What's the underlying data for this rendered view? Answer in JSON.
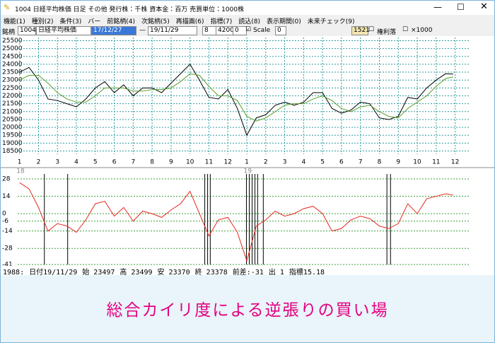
{
  "window": {
    "title": "1004 日経平均株価 日足 その他 発行株：千株 資本金：百万 売買単位：1000株",
    "menu": [
      "機能(1)",
      "種別(2)",
      "条件(3)",
      "バー",
      "前銘柄(4)",
      "次銘柄(5)",
      "再描画(6)",
      "指標(7)",
      "読込(8)",
      "表示期間(0)",
      "未来チェック(9)"
    ],
    "toolbar": {
      "code_label": "銘柄",
      "code": "1004",
      "name": "日経平均株価",
      "start": "17/12/27",
      "dash": "—",
      "end": "19/11/29",
      "n1": "8",
      "n2": "4200",
      "n3": "0",
      "scale": "Scale",
      "n4": "0",
      "n5": "1521",
      "rights": "権利落",
      "unit": "×1000"
    },
    "status": [
      "1988:",
      "日付19/11/29",
      "始 23497",
      "高 23499",
      "安 23370",
      "終 23378",
      "前差:-31",
      "出 1",
      "指標15.18"
    ]
  },
  "caption": "総合カイリ度による逆張りの買い場",
  "chart_data": [
    {
      "type": "line",
      "x": [
        0,
        0.5,
        1,
        1.5,
        2,
        2.5,
        3,
        3.5,
        4,
        4.5,
        5,
        5.5,
        6,
        6.5,
        7,
        7.5,
        8,
        8.5,
        9,
        9.5,
        10,
        10.5,
        11,
        11.5,
        12,
        12.5,
        13,
        13.5,
        14,
        14.5,
        15,
        15.5,
        16,
        16.5,
        17,
        17.5,
        18,
        18.5,
        19,
        19.5,
        20,
        20.5,
        21,
        21.5,
        22,
        22.5,
        22.9
      ],
      "series": [
        {
          "color": "#000000",
          "values": [
            23500,
            23800,
            23000,
            21800,
            21700,
            21500,
            21300,
            21800,
            22500,
            22900,
            22200,
            22700,
            22000,
            22500,
            22500,
            22200,
            22800,
            23400,
            24000,
            23000,
            21900,
            21800,
            22400,
            21200,
            19500,
            20600,
            20800,
            21400,
            21600,
            21400,
            21600,
            22200,
            22200,
            21200,
            20900,
            21100,
            21600,
            21500,
            20600,
            20500,
            20700,
            21900,
            21800,
            22500,
            23000,
            23400,
            23378
          ]
        },
        {
          "color": "#5a9e2a",
          "values": [
            23000,
            23300,
            23300,
            22800,
            22200,
            21800,
            21600,
            21600,
            22000,
            22500,
            22500,
            22500,
            22300,
            22300,
            22400,
            22400,
            22500,
            22900,
            23400,
            23300,
            22600,
            22000,
            22000,
            21700,
            20700,
            20400,
            20600,
            21000,
            21400,
            21500,
            21500,
            21800,
            22000,
            21700,
            21200,
            21000,
            21300,
            21400,
            21000,
            20700,
            20600,
            21200,
            21600,
            22000,
            22600,
            23100,
            23200
          ]
        }
      ],
      "xlim": [
        -0.1,
        23.8
      ],
      "xticks": [
        {
          "value": 0,
          "label": "1"
        },
        {
          "value": 1,
          "label": "2"
        },
        {
          "value": 2,
          "label": "3"
        },
        {
          "value": 3,
          "label": "4"
        },
        {
          "value": 4,
          "label": "5"
        },
        {
          "value": 5,
          "label": "6"
        },
        {
          "value": 6,
          "label": "7"
        },
        {
          "value": 7,
          "label": "8"
        },
        {
          "value": 8,
          "label": "9"
        },
        {
          "value": 9,
          "label": "10"
        },
        {
          "value": 10,
          "label": "11"
        },
        {
          "value": 11,
          "label": "12"
        },
        {
          "value": 12,
          "label": "1"
        },
        {
          "value": 13,
          "label": "2"
        },
        {
          "value": 14,
          "label": "3"
        },
        {
          "value": 15,
          "label": "4"
        },
        {
          "value": 16,
          "label": "5"
        },
        {
          "value": 17,
          "label": "6"
        },
        {
          "value": 18,
          "label": "7"
        },
        {
          "value": 19,
          "label": "8"
        },
        {
          "value": 20,
          "label": "9"
        },
        {
          "value": 21,
          "label": "10"
        },
        {
          "value": 22,
          "label": "11"
        },
        {
          "value": 23,
          "label": "12"
        }
      ],
      "ylim": [
        18300,
        25700
      ],
      "yticks": [
        25500,
        25000,
        24500,
        24000,
        23500,
        23000,
        22500,
        22000,
        21500,
        21000,
        20500,
        20000,
        19500,
        19000,
        18500
      ],
      "grid": true,
      "grid_color": "#2f9c9c"
    },
    {
      "type": "line",
      "x": [
        0,
        0.5,
        1,
        1.5,
        2,
        2.5,
        3,
        3.5,
        4,
        4.5,
        5,
        5.5,
        6,
        6.5,
        7,
        7.5,
        8,
        8.5,
        9,
        9.5,
        10,
        10.5,
        11,
        11.5,
        12,
        12.5,
        13,
        13.5,
        14,
        14.5,
        15,
        15.5,
        16,
        16.5,
        17,
        17.5,
        18,
        18.5,
        19,
        19.5,
        20,
        20.5,
        21,
        21.5,
        22,
        22.5,
        22.9
      ],
      "series": [
        {
          "color": "#e8281e",
          "values": [
            25,
            20,
            5,
            -14,
            -8,
            -10,
            -15,
            -5,
            8,
            10,
            -2,
            5,
            -6,
            2,
            0,
            -3,
            3,
            8,
            18,
            0,
            -18,
            -5,
            -3,
            -15,
            -38,
            -10,
            -5,
            2,
            -2,
            0,
            4,
            6,
            0,
            -14,
            -12,
            -5,
            -2,
            -4,
            -10,
            -12,
            -8,
            8,
            0,
            12,
            14,
            16,
            15
          ]
        }
      ],
      "xlim": [
        -0.1,
        23.8
      ],
      "ylim": [
        -41,
        32
      ],
      "yticks": [
        28,
        14,
        0,
        -6,
        -14,
        -28,
        -41
      ],
      "grid": true,
      "grid_color": "#3aa03a",
      "signals": {
        "color": "#000000",
        "x": [
          1.31,
          2.54,
          9.78,
          9.93,
          10.07,
          11.98,
          12.13,
          12.28,
          12.43,
          12.57,
          12.87,
          19.4,
          19.59
        ]
      },
      "annotations": [
        "18",
        "19"
      ]
    }
  ]
}
